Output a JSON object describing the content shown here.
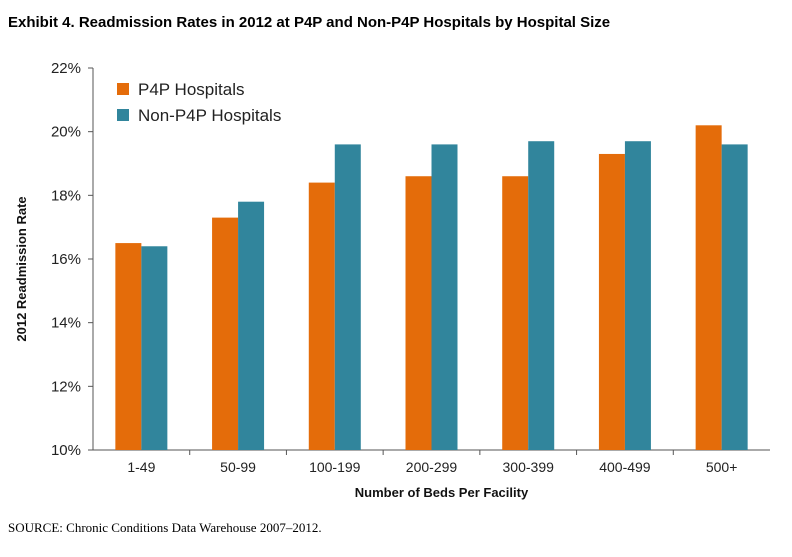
{
  "figure": {
    "title": "Exhibit 4. Readmission Rates in 2012 at P4P and Non-P4P Hospitals by Hospital Size",
    "source": "SOURCE: Chronic Conditions Data Warehouse 2007–2012."
  },
  "chart_data": {
    "type": "bar",
    "title": "Exhibit 4. Readmission Rates in 2012 at P4P and Non-P4P Hospitals by Hospital Size",
    "xlabel": "Number of Beds Per Facility",
    "ylabel": "2012 Readmission Rate",
    "ylim": [
      10,
      22
    ],
    "yticks": [
      10,
      12,
      14,
      16,
      18,
      20,
      22
    ],
    "ytick_labels": [
      "10%",
      "12%",
      "14%",
      "16%",
      "18%",
      "20%",
      "22%"
    ],
    "grid": false,
    "legend_position": "top-left",
    "categories": [
      "1-49",
      "50-99",
      "100-199",
      "200-299",
      "300-399",
      "400-499",
      "500+"
    ],
    "series": [
      {
        "name": "P4P Hospitals",
        "color": "#E46C0A",
        "values": [
          16.5,
          17.3,
          18.4,
          18.6,
          18.6,
          19.3,
          20.2
        ]
      },
      {
        "name": "Non-P4P Hospitals",
        "color": "#31859C",
        "values": [
          16.4,
          17.8,
          19.6,
          19.6,
          19.7,
          19.7,
          19.6
        ]
      }
    ]
  }
}
